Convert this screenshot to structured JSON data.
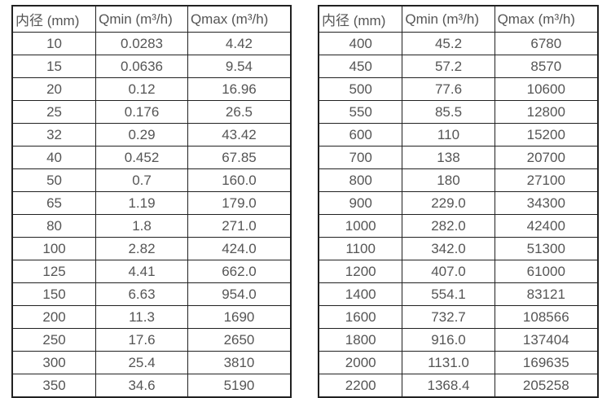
{
  "accent_colors": {
    "border": "#212121",
    "text": "#555555",
    "background": "#ffffff"
  },
  "chart_data": [
    {
      "type": "table",
      "title": "",
      "columns": [
        "内径 (mm)",
        "Qmin (m³/h)",
        "Qmax (m³/h)"
      ],
      "rows": [
        [
          "10",
          "0.0283",
          "4.42"
        ],
        [
          "15",
          "0.0636",
          "9.54"
        ],
        [
          "20",
          "0.12",
          "16.96"
        ],
        [
          "25",
          "0.176",
          "26.5"
        ],
        [
          "32",
          "0.29",
          "43.42"
        ],
        [
          "40",
          "0.452",
          "67.85"
        ],
        [
          "50",
          "0.7",
          "160.0"
        ],
        [
          "65",
          "1.19",
          "179.0"
        ],
        [
          "80",
          "1.8",
          "271.0"
        ],
        [
          "100",
          "2.82",
          "424.0"
        ],
        [
          "125",
          "4.41",
          "662.0"
        ],
        [
          "150",
          "6.63",
          "954.0"
        ],
        [
          "200",
          "11.3",
          "1690"
        ],
        [
          "250",
          "17.6",
          "2650"
        ],
        [
          "300",
          "25.4",
          "3810"
        ],
        [
          "350",
          "34.6",
          "5190"
        ]
      ]
    },
    {
      "type": "table",
      "title": "",
      "columns": [
        "内径 (mm)",
        "Qmin (m³/h)",
        "Qmax (m³/h)"
      ],
      "rows": [
        [
          "400",
          "45.2",
          "6780"
        ],
        [
          "450",
          "57.2",
          "8570"
        ],
        [
          "500",
          "77.6",
          "10600"
        ],
        [
          "550",
          "85.5",
          "12800"
        ],
        [
          "600",
          "110",
          "15200"
        ],
        [
          "700",
          "138",
          "20700"
        ],
        [
          "800",
          "180",
          "27100"
        ],
        [
          "900",
          "229.0",
          "34300"
        ],
        [
          "1000",
          "282.0",
          "42400"
        ],
        [
          "1100",
          "342.0",
          "51300"
        ],
        [
          "1200",
          "407.0",
          "61000"
        ],
        [
          "1400",
          "554.1",
          "83121"
        ],
        [
          "1600",
          "732.7",
          "108566"
        ],
        [
          "1800",
          "916.0",
          "137404"
        ],
        [
          "2000",
          "1131.0",
          "169635"
        ],
        [
          "2200",
          "1368.4",
          "205258"
        ]
      ]
    }
  ]
}
